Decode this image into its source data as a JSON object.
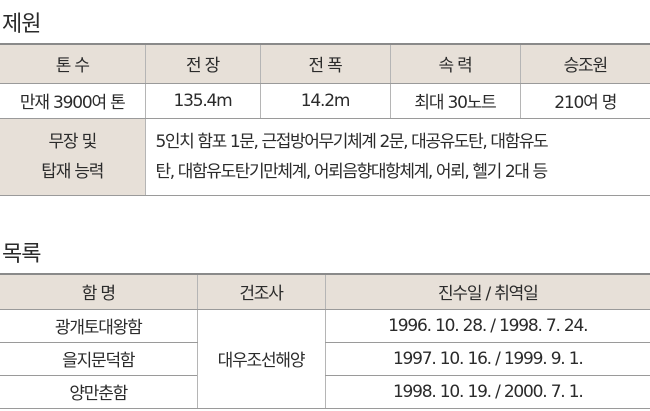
{
  "specs": {
    "title": "제원",
    "headers": [
      "톤 수",
      "전 장",
      "전 폭",
      "속 력",
      "승조원"
    ],
    "values": [
      "만재 3900여 톤",
      "135.4m",
      "14.2m",
      "최대 30노트",
      "210여 명"
    ],
    "armament_label_1": "무장 및",
    "armament_label_2": "탑재 능력",
    "armament_line_1": "5인치 함포 1문, 근접방어무기체계 2문, 대공유도탄, 대함유도",
    "armament_line_2": "탄, 대함유도탄기만체계, 어뢰음향대항체계, 어뢰, 헬기 2대 등"
  },
  "list": {
    "title": "목록",
    "headers": [
      "함 명",
      "건조사",
      "진수일 / 취역일"
    ],
    "builder": "대우조선해양",
    "rows": [
      {
        "name": "광개토대왕함",
        "dates": "1996. 10. 28. / 1998. 7. 24."
      },
      {
        "name": "을지문덕함",
        "dates": "1997. 10. 16. / 1999. 9. 1."
      },
      {
        "name": "양만춘함",
        "dates": "1998. 10. 19. / 2000. 7. 1."
      }
    ]
  }
}
